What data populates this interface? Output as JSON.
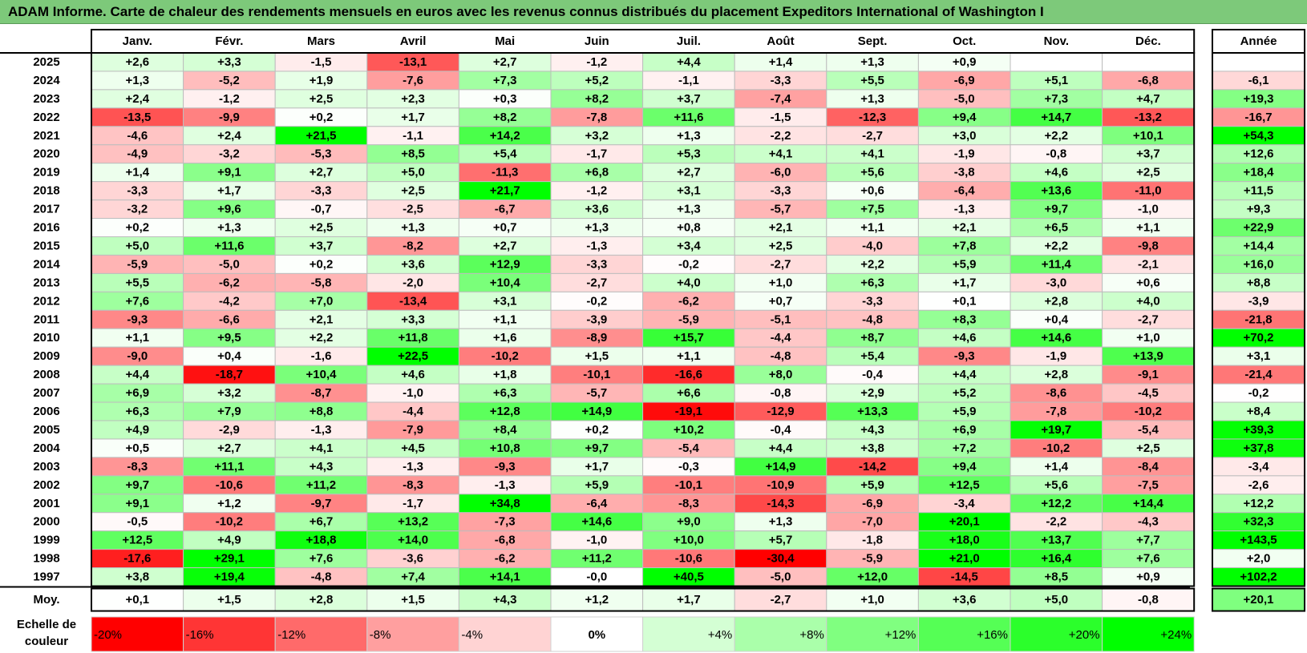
{
  "title": "ADAM Informe. Carte de chaleur des rendements mensuels en euros avec les revenus connus distribués du placement Expeditors International of Washington I",
  "chart_data": {
    "type": "heatmap",
    "columns": [
      "Janv.",
      "Févr.",
      "Mars",
      "Avril",
      "Mai",
      "Juin",
      "Juil.",
      "Août",
      "Sept.",
      "Oct.",
      "Nov.",
      "Déc."
    ],
    "year_header": "Année",
    "rows": [
      {
        "year": "2025",
        "months": [
          "+2,6",
          "+3,3",
          "-1,5",
          "-13,1",
          "+2,7",
          "-1,2",
          "+4,4",
          "+1,4",
          "+1,3",
          "+0,9",
          "",
          ""
        ],
        "annual": ""
      },
      {
        "year": "2024",
        "months": [
          "+1,3",
          "-5,2",
          "+1,9",
          "-7,6",
          "+7,3",
          "+5,2",
          "-1,1",
          "-3,3",
          "+5,5",
          "-6,9",
          "+5,1",
          "-6,8"
        ],
        "annual": "-6,1"
      },
      {
        "year": "2023",
        "months": [
          "+2,4",
          "-1,2",
          "+2,5",
          "+2,3",
          "+0,3",
          "+8,2",
          "+3,7",
          "-7,4",
          "+1,3",
          "-5,0",
          "+7,3",
          "+4,7"
        ],
        "annual": "+19,3"
      },
      {
        "year": "2022",
        "months": [
          "-13,5",
          "-9,9",
          "+0,2",
          "+1,7",
          "+8,2",
          "-7,8",
          "+11,6",
          "-1,5",
          "-12,3",
          "+9,4",
          "+14,7",
          "-13,2"
        ],
        "annual": "-16,7"
      },
      {
        "year": "2021",
        "months": [
          "-4,6",
          "+2,4",
          "+21,5",
          "-1,1",
          "+14,2",
          "+3,2",
          "+1,3",
          "-2,2",
          "-2,7",
          "+3,0",
          "+2,2",
          "+10,1"
        ],
        "annual": "+54,3"
      },
      {
        "year": "2020",
        "months": [
          "-4,9",
          "-3,2",
          "-5,3",
          "+8,5",
          "+5,4",
          "-1,7",
          "+5,3",
          "+4,1",
          "+4,1",
          "-1,9",
          "-0,8",
          "+3,7"
        ],
        "annual": "+12,6"
      },
      {
        "year": "2019",
        "months": [
          "+1,4",
          "+9,1",
          "+2,7",
          "+5,0",
          "-11,3",
          "+6,8",
          "+2,7",
          "-6,0",
          "+5,6",
          "-3,8",
          "+4,6",
          "+2,5"
        ],
        "annual": "+18,4"
      },
      {
        "year": "2018",
        "months": [
          "-3,3",
          "+1,7",
          "-3,3",
          "+2,5",
          "+21,7",
          "-1,2",
          "+3,1",
          "-3,3",
          "+0,6",
          "-6,4",
          "+13,6",
          "-11,0"
        ],
        "annual": "+11,5"
      },
      {
        "year": "2017",
        "months": [
          "-3,2",
          "+9,6",
          "-0,7",
          "-2,5",
          "-6,7",
          "+3,6",
          "+1,3",
          "-5,7",
          "+7,5",
          "-1,3",
          "+9,7",
          "-1,0"
        ],
        "annual": "+9,3"
      },
      {
        "year": "2016",
        "months": [
          "+0,2",
          "+1,3",
          "+2,5",
          "+1,3",
          "+0,7",
          "+1,3",
          "+0,8",
          "+2,1",
          "+1,1",
          "+2,1",
          "+6,5",
          "+1,1"
        ],
        "annual": "+22,9"
      },
      {
        "year": "2015",
        "months": [
          "+5,0",
          "+11,6",
          "+3,7",
          "-8,2",
          "+2,7",
          "-1,3",
          "+3,4",
          "+2,5",
          "-4,0",
          "+7,8",
          "+2,2",
          "-9,8"
        ],
        "annual": "+14,4"
      },
      {
        "year": "2014",
        "months": [
          "-5,9",
          "-5,0",
          "+0,2",
          "+3,6",
          "+12,9",
          "-3,3",
          "-0,2",
          "-2,7",
          "+2,2",
          "+5,9",
          "+11,4",
          "-2,1"
        ],
        "annual": "+16,0"
      },
      {
        "year": "2013",
        "months": [
          "+5,5",
          "-6,2",
          "-5,8",
          "-2,0",
          "+10,4",
          "-2,7",
          "+4,0",
          "+1,0",
          "+6,3",
          "+1,7",
          "-3,0",
          "+0,6"
        ],
        "annual": "+8,8"
      },
      {
        "year": "2012",
        "months": [
          "+7,6",
          "-4,2",
          "+7,0",
          "-13,4",
          "+3,1",
          "-0,2",
          "-6,2",
          "+0,7",
          "-3,3",
          "+0,1",
          "+2,8",
          "+4,0"
        ],
        "annual": "-3,9"
      },
      {
        "year": "2011",
        "months": [
          "-9,3",
          "-6,6",
          "+2,1",
          "+3,3",
          "+1,1",
          "-3,9",
          "-5,9",
          "-5,1",
          "-4,8",
          "+8,3",
          "+0,4",
          "-2,7"
        ],
        "annual": "-21,8"
      },
      {
        "year": "2010",
        "months": [
          "+1,1",
          "+9,5",
          "+2,2",
          "+11,8",
          "+1,6",
          "-8,9",
          "+15,7",
          "-4,4",
          "+8,7",
          "+4,6",
          "+14,6",
          "+1,0"
        ],
        "annual": "+70,2"
      },
      {
        "year": "2009",
        "months": [
          "-9,0",
          "+0,4",
          "-1,6",
          "+22,5",
          "-10,2",
          "+1,5",
          "+1,1",
          "-4,8",
          "+5,4",
          "-9,3",
          "-1,9",
          "+13,9"
        ],
        "annual": "+3,1"
      },
      {
        "year": "2008",
        "months": [
          "+4,4",
          "-18,7",
          "+10,4",
          "+4,6",
          "+1,8",
          "-10,1",
          "-16,6",
          "+8,0",
          "-0,4",
          "+4,4",
          "+2,8",
          "-9,1"
        ],
        "annual": "-21,4"
      },
      {
        "year": "2007",
        "months": [
          "+6,9",
          "+3,2",
          "-8,7",
          "-1,0",
          "+6,3",
          "-5,7",
          "+6,6",
          "-0,8",
          "+2,9",
          "+5,2",
          "-8,6",
          "-4,5"
        ],
        "annual": "-0,2"
      },
      {
        "year": "2006",
        "months": [
          "+6,3",
          "+7,9",
          "+8,8",
          "-4,4",
          "+12,8",
          "+14,9",
          "-19,1",
          "-12,9",
          "+13,3",
          "+5,9",
          "-7,8",
          "-10,2"
        ],
        "annual": "+8,4"
      },
      {
        "year": "2005",
        "months": [
          "+4,9",
          "-2,9",
          "-1,3",
          "-7,9",
          "+8,4",
          "+0,2",
          "+10,2",
          "-0,4",
          "+4,3",
          "+6,9",
          "+19,7",
          "-5,4"
        ],
        "annual": "+39,3"
      },
      {
        "year": "2004",
        "months": [
          "+0,5",
          "+2,7",
          "+4,1",
          "+4,5",
          "+10,8",
          "+9,7",
          "-5,4",
          "+4,4",
          "+3,8",
          "+7,2",
          "-10,2",
          "+2,5"
        ],
        "annual": "+37,8"
      },
      {
        "year": "2003",
        "months": [
          "-8,3",
          "+11,1",
          "+4,3",
          "-1,3",
          "-9,3",
          "+1,7",
          "-0,3",
          "+14,9",
          "-14,2",
          "+9,4",
          "+1,4",
          "-8,4"
        ],
        "annual": "-3,4"
      },
      {
        "year": "2002",
        "months": [
          "+9,7",
          "-10,6",
          "+11,2",
          "-8,3",
          "-1,3",
          "+5,9",
          "-10,1",
          "-10,9",
          "+5,9",
          "+12,5",
          "+5,6",
          "-7,5"
        ],
        "annual": "-2,6"
      },
      {
        "year": "2001",
        "months": [
          "+9,1",
          "+1,2",
          "-9,7",
          "-1,7",
          "+34,8",
          "-6,4",
          "-8,3",
          "-14,3",
          "-6,9",
          "-3,4",
          "+12,2",
          "+14,4"
        ],
        "annual": "+12,2"
      },
      {
        "year": "2000",
        "months": [
          "-0,5",
          "-10,2",
          "+6,7",
          "+13,2",
          "-7,3",
          "+14,6",
          "+9,0",
          "+1,3",
          "-7,0",
          "+20,1",
          "-2,2",
          "-4,3"
        ],
        "annual": "+32,3"
      },
      {
        "year": "1999",
        "months": [
          "+12,5",
          "+4,9",
          "+18,8",
          "+14,0",
          "-6,8",
          "-1,0",
          "+10,0",
          "+5,7",
          "-1,8",
          "+18,0",
          "+13,7",
          "+7,7"
        ],
        "annual": "+143,5"
      },
      {
        "year": "1998",
        "months": [
          "-17,6",
          "+29,1",
          "+7,6",
          "-3,6",
          "-6,2",
          "+11,2",
          "-10,6",
          "-30,4",
          "-5,9",
          "+21,0",
          "+16,4",
          "+7,6"
        ],
        "annual": "+2,0"
      },
      {
        "year": "1997",
        "months": [
          "+3,8",
          "+19,4",
          "-4,8",
          "+7,4",
          "+14,1",
          "-0,0",
          "+40,5",
          "-5,0",
          "+12,0",
          "-14,5",
          "+8,5",
          "+0,9"
        ],
        "annual": "+102,2"
      }
    ],
    "average": {
      "label": "Moy.",
      "months": [
        "+0,1",
        "+1,5",
        "+2,8",
        "+1,5",
        "+4,3",
        "+1,2",
        "+1,7",
        "-2,7",
        "+1,0",
        "+3,6",
        "+5,0",
        "-0,8"
      ],
      "annual": "+20,1"
    },
    "color_scale": {
      "label": "Echelle de couleur",
      "stops": [
        "-20%",
        "-16%",
        "-12%",
        "-8%",
        "-4%",
        "0%",
        "+4%",
        "+8%",
        "+12%",
        "+16%",
        "+20%",
        "+24%"
      ],
      "colors": [
        "#ff0000",
        "#ff3535",
        "#ff6a6a",
        "#ff9f9f",
        "#ffd3d3",
        "#ffffff",
        "#d4ffd4",
        "#aaffaa",
        "#80ff80",
        "#55ff55",
        "#2bff2b",
        "#00ff00"
      ]
    }
  }
}
